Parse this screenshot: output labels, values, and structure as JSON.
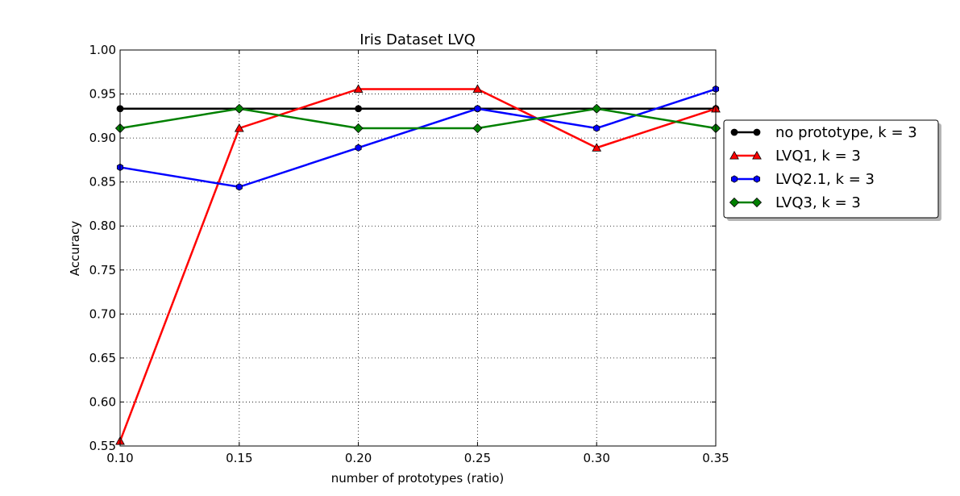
{
  "chart_data": {
    "type": "line",
    "title": "Iris Dataset LVQ",
    "xlabel": "number of prototypes (ratio)",
    "ylabel": "Accuracy",
    "xlim": [
      0.1,
      0.35
    ],
    "ylim": [
      0.55,
      1.0
    ],
    "x": [
      0.1,
      0.15,
      0.2,
      0.25,
      0.3,
      0.35
    ],
    "xticks": [
      "0.10",
      "0.15",
      "0.20",
      "0.25",
      "0.30",
      "0.35"
    ],
    "yticks": [
      "0.55",
      "0.60",
      "0.65",
      "0.70",
      "0.75",
      "0.80",
      "0.85",
      "0.90",
      "0.95",
      "1.00"
    ],
    "grid": true,
    "legend_position": "outside-right",
    "series": [
      {
        "name": "no prototype, k = 3",
        "color": "#000000",
        "marker": "circle",
        "values": [
          0.9333,
          0.9333,
          0.9333,
          0.9333,
          0.9333,
          0.9333
        ]
      },
      {
        "name": "LVQ1, k = 3",
        "color": "#ff0000",
        "marker": "triangle",
        "values": [
          0.5556,
          0.9111,
          0.9556,
          0.9556,
          0.8889,
          0.9333
        ]
      },
      {
        "name": "LVQ2.1, k = 3",
        "color": "#0000ff",
        "marker": "hexagon",
        "values": [
          0.8667,
          0.8444,
          0.8889,
          0.9333,
          0.9111,
          0.9556
        ]
      },
      {
        "name": "LVQ3, k = 3",
        "color": "#008000",
        "marker": "diamond",
        "values": [
          0.9111,
          0.9333,
          0.9111,
          0.9111,
          0.9333,
          0.9111
        ]
      }
    ]
  }
}
